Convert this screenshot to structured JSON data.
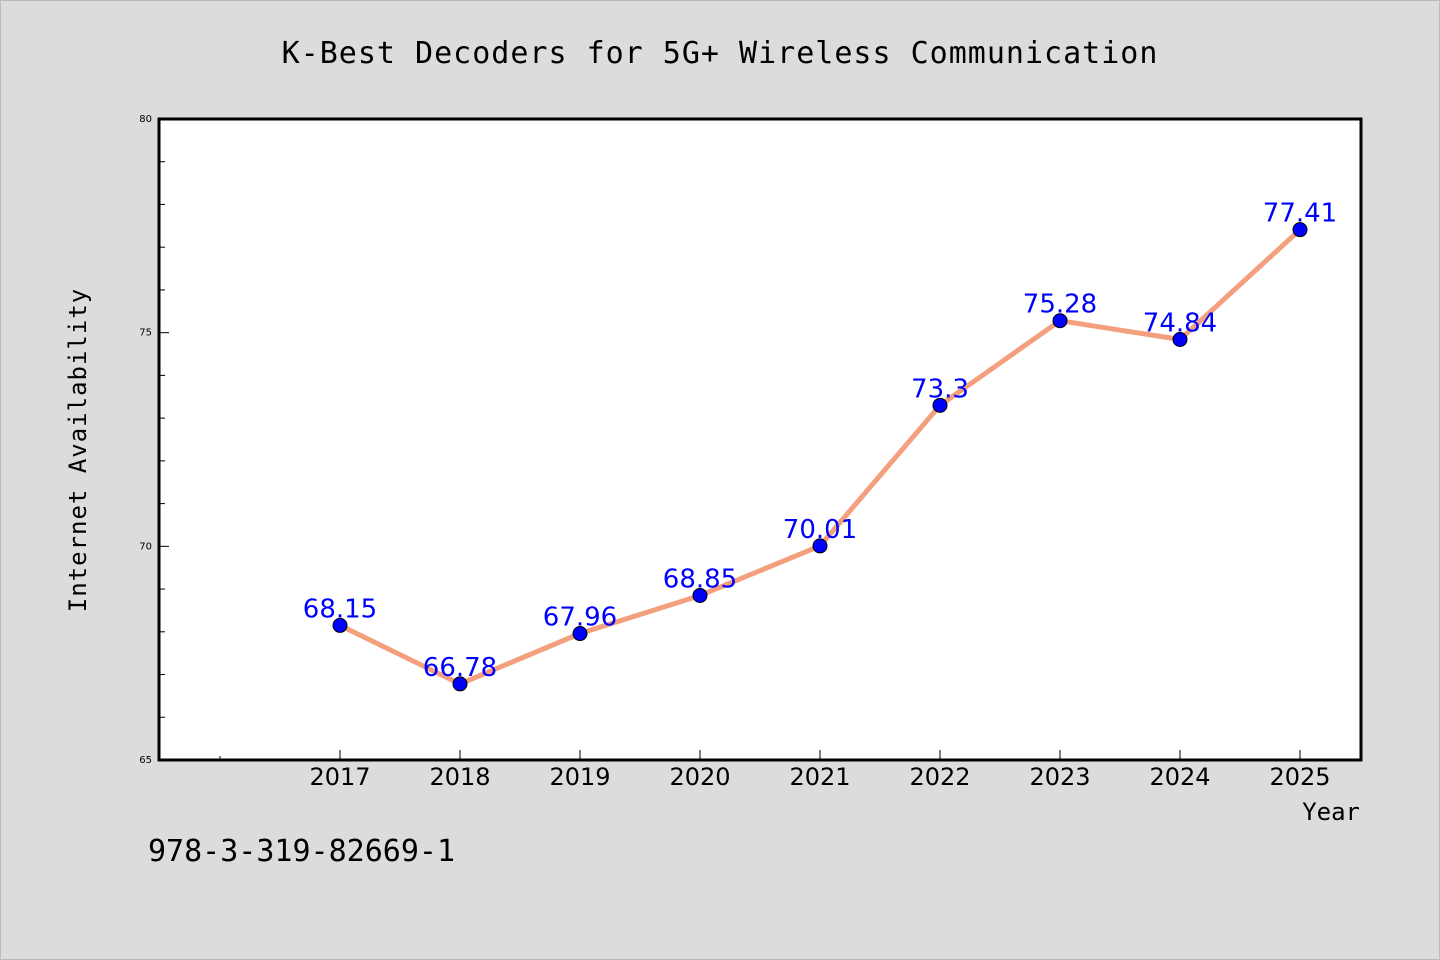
{
  "chart_data": {
    "type": "line",
    "title": "K-Best Decoders for 5G+ Wireless Communication",
    "xlabel": "Year",
    "ylabel": "Internet Availability",
    "x": [
      "2017",
      "2018",
      "2019",
      "2020",
      "2021",
      "2022",
      "2023",
      "2024",
      "2025"
    ],
    "series": [
      {
        "values": [
          68.15,
          66.78,
          67.96,
          68.85,
          70.01,
          73.3,
          75.28,
          74.84,
          77.41
        ],
        "data_labels": [
          "68.15",
          "66.78",
          "67.96",
          "68.85",
          "70.01",
          "73.3",
          "75.28",
          "74.84",
          "77.41"
        ]
      }
    ],
    "ylim": [
      65,
      80
    ],
    "y_ticks": [
      "65",
      "70",
      "75",
      "80"
    ],
    "grid": false,
    "legend": "none"
  },
  "colors": {
    "background": "#dcdcdc",
    "plot_area": "#ffffff",
    "line": "#f4a07e",
    "marker": "#0000ff",
    "data_label": "#0000ff"
  },
  "footer": {
    "isbn": "978-3-319-82669-1"
  }
}
